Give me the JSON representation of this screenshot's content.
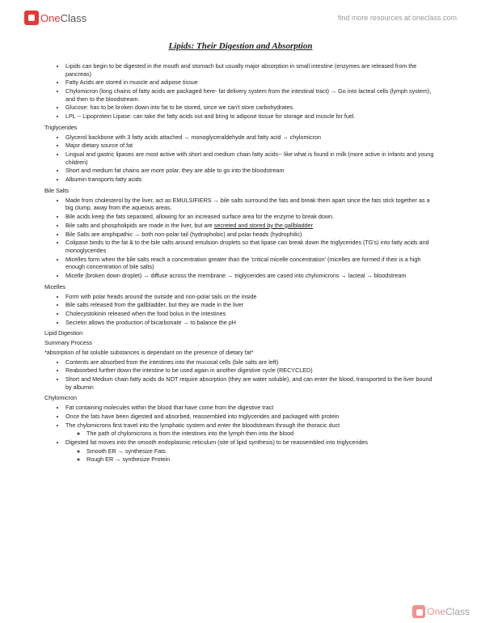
{
  "header": {
    "logo_one": "One",
    "logo_class": "Class",
    "link_text": "find more resources at oneclass.com"
  },
  "title": "Lipids: Their Digestion and Absorption",
  "intro": [
    "Lipids can begin to be digested in the mouth and stomach but usually major absorption in small intestine (enzymes are released from the pancreas)",
    "Fatty Acids are stored in muscle and adipose tissue",
    "Chylomicron (long chains of fatty acids are packaged here- fat delivery system from the intestinal tract) → Go into lacteal cells (lymph system), and then to the bloodstream.",
    "Glucose: has to be broken down into fat to be stored, since we can't store carbohydrates.",
    "LPL -- Lipoprotein Lipase: can take the fatty acids out and bring to adipose tissue for storage and muscle for fuel."
  ],
  "sections": [
    {
      "heading": "Triglycerides",
      "items": [
        "Glycerol backbone with 3 fatty acids attached → monoglyceraldehyde and fatty acid → chylomicron",
        "Major dietary source of fat",
        "Lingual and gastric lipases are most active with short and medium chain fatty acids-- like what is found in milk (more active in infants and young children)",
        "Short and medium fat chains are more polar, they are able to go into the bloodstream",
        "Albumin transports fatty acids"
      ]
    },
    {
      "heading": "Bile Salts",
      "items": [
        "Made from cholesterol by the liver, act as EMULSIFIERS → bile salts surround the fats and break them apart since the fats stick together as a big clump, away from the aqueous areas.",
        "Bile acids keep the fats separated, allowing for an increased surface area for the enzyme to break down.",
        {
          "pre": "Bile salts and phospholipids are made in the liver, but are ",
          "u": "secreted and stored by the gallbladder"
        },
        "Bile Salts are amphipathic → both non-polar tail (hydrophobic) and polar heads (hydrophilic)",
        "Colipase binds to the fat & to the bile salts around emulsion droplets so that lipase can break down the triglycerides (TG's) into fatty acids and monoglycerides",
        "Micelles form when the bile salts reach a concentration greater than the 'critical micelle concentration' (micelles are formed if their is a high enough concentration of bile salts)",
        "Micelle (broken down droplet) → diffuse across the membrane → triglycerides are cased into chylomicrons → lacteal → bloodstream"
      ]
    },
    {
      "heading": "Micelles",
      "items": [
        "Form with polar heads around the outside and non-polar tails on the inside",
        "Bile salts released from the gallbladder, but they are made in the liver",
        "Cholecystokinin released when the food bolus in the intestines",
        "Secretin allows the production of bicarbonate → to balance the pH"
      ]
    }
  ],
  "lipid_digestion_heading": "Lipid Digestion",
  "summary_heading": "Summary Process",
  "summary_note": "*absorption of fat soluble substances is dependant on the presence of dietary fat*",
  "summary_items": [
    "Contents are absorbed from the intestines into the mucosal cells (bile salts are left)",
    "Reabsorbed further down the intestine to be used again in another digestive cycle (RECYCLED)",
    "Short and Medium chain fatty acids do NOT require absorption (they are water soluble), and can enter the blood, transported to the liver bound by albumin"
  ],
  "chylo_heading": "Chylomicron",
  "chylo_items": [
    {
      "text": "Fat containing molecules within the blood that have come from the digestive tract"
    },
    {
      "text": "Once the fats have been digested and absorbed, reassembled into triglycerides and packaged with protein"
    },
    {
      "text": "The chylomicrons first travel into the lymphatic system and enter the bloodstream through the thoracic duct",
      "sub": [
        "The path of chylomicrons is from the intestines into the lymph then into the blood"
      ]
    },
    {
      "text": "Digested fat moves into the smooth endoplasmic reticulum (site of lipid synthesis) to be reassembled into triglycerides",
      "sub": [
        "Smooth ER → synthesize Fats",
        "Rough ER → synthesize Protein"
      ]
    }
  ],
  "colors": {
    "text": "#222222",
    "red": "#e53935",
    "link": "#999999",
    "bg": "#ffffff"
  }
}
